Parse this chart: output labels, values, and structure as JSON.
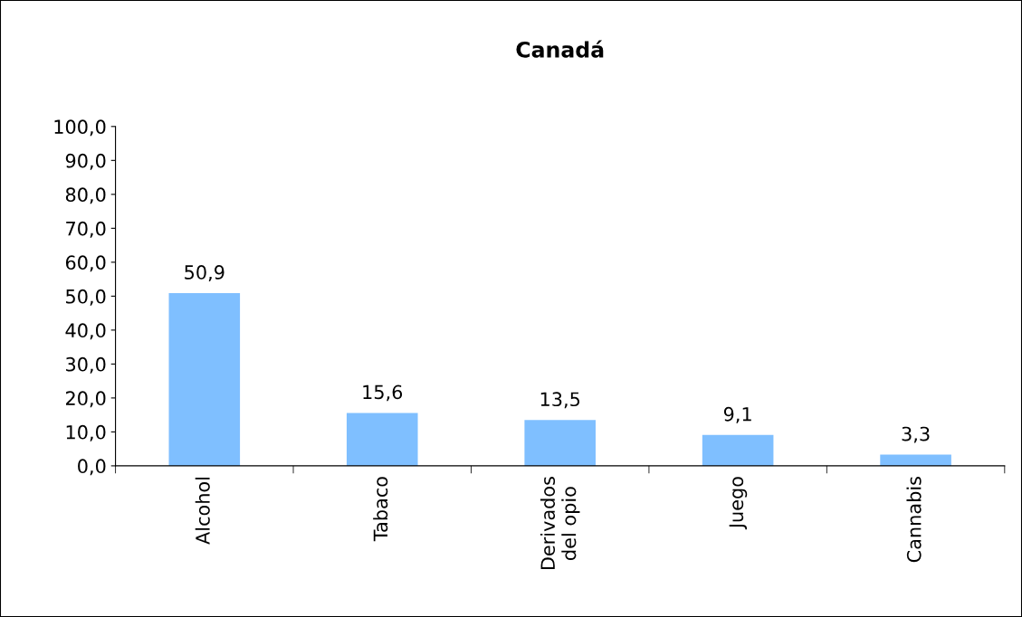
{
  "chart_data": {
    "type": "bar",
    "title": "Canadá",
    "categories": [
      "Alcohol",
      "Tabaco",
      "Derivados\ndel opio",
      "Juego",
      "Cannabis"
    ],
    "values": [
      50.9,
      15.6,
      13.5,
      9.1,
      3.3
    ],
    "value_labels": [
      "50,9",
      "15,6",
      "13,5",
      "9,1",
      "3,3"
    ],
    "color": "#7fbfff",
    "ylim": [
      0,
      100
    ],
    "yticks": [
      {
        "value": 0,
        "label": "0,0"
      },
      {
        "value": 10,
        "label": "10,0"
      },
      {
        "value": 20,
        "label": "20,0"
      },
      {
        "value": 30,
        "label": "30,0"
      },
      {
        "value": 40,
        "label": "40,0"
      },
      {
        "value": 50,
        "label": "50,0"
      },
      {
        "value": 60,
        "label": "60,0"
      },
      {
        "value": 70,
        "label": "70,0"
      },
      {
        "value": 80,
        "label": "80,0"
      },
      {
        "value": 90,
        "label": "90,0"
      },
      {
        "value": 100,
        "label": "100,0"
      }
    ],
    "grid": false
  }
}
